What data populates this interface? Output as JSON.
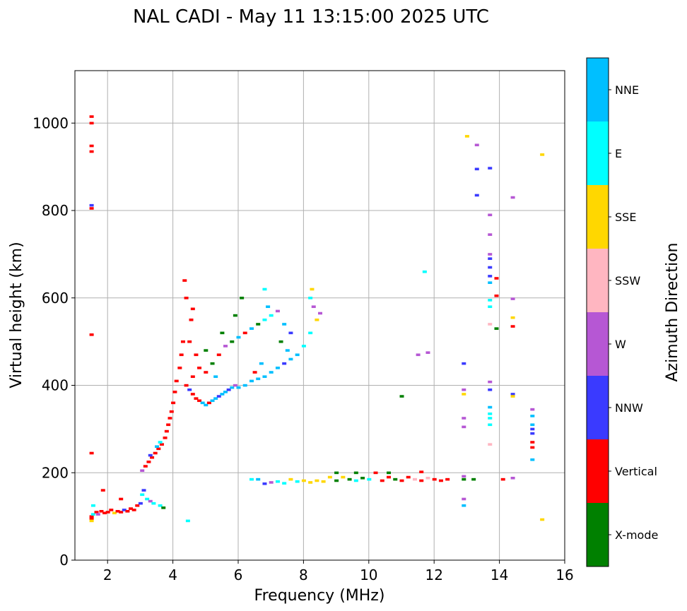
{
  "chart_data": {
    "type": "scatter",
    "subtype": "ionogram",
    "title": "NAL CADI - May 11 13:15:00 2025 UTC",
    "xlabel": "Frequency (MHz)",
    "ylabel": "Virtual height (km)",
    "xlim": [
      1,
      16
    ],
    "ylim": [
      0,
      1120
    ],
    "xticks": [
      2,
      4,
      6,
      8,
      10,
      12,
      14,
      16
    ],
    "yticks": [
      0,
      200,
      400,
      600,
      800,
      1000
    ],
    "grid": true,
    "colorbar": {
      "label": "Azimuth Direction",
      "categories": [
        {
          "name": "X-mode",
          "color": "#008000"
        },
        {
          "name": "Vertical",
          "color": "#ff0000"
        },
        {
          "name": "NNW",
          "color": "#3a3aff"
        },
        {
          "name": "W",
          "color": "#b657d4"
        },
        {
          "name": "SSW",
          "color": "#ffb6c1"
        },
        {
          "name": "SSE",
          "color": "#ffd700"
        },
        {
          "name": "E",
          "color": "#00ffff"
        },
        {
          "name": "NNE",
          "color": "#00bfff"
        }
      ]
    },
    "points": [
      {
        "x": 1.5,
        "y": 1015,
        "c": "Vertical"
      },
      {
        "x": 1.5,
        "y": 1000,
        "c": "Vertical"
      },
      {
        "x": 1.5,
        "y": 948,
        "c": "Vertical"
      },
      {
        "x": 1.5,
        "y": 935,
        "c": "Vertical"
      },
      {
        "x": 1.5,
        "y": 812,
        "c": "NNW"
      },
      {
        "x": 1.5,
        "y": 805,
        "c": "Vertical"
      },
      {
        "x": 1.5,
        "y": 516,
        "c": "Vertical"
      },
      {
        "x": 1.5,
        "y": 245,
        "c": "Vertical"
      },
      {
        "x": 1.5,
        "y": 100,
        "c": "Vertical"
      },
      {
        "x": 1.5,
        "y": 95,
        "c": "Vertical"
      },
      {
        "x": 1.55,
        "y": 105,
        "c": "E"
      },
      {
        "x": 1.55,
        "y": 125,
        "c": "E"
      },
      {
        "x": 1.5,
        "y": 90,
        "c": "SSE"
      },
      {
        "x": 1.65,
        "y": 110,
        "c": "Vertical"
      },
      {
        "x": 1.7,
        "y": 105,
        "c": "W"
      },
      {
        "x": 1.8,
        "y": 112,
        "c": "Vertical"
      },
      {
        "x": 1.9,
        "y": 108,
        "c": "Vertical"
      },
      {
        "x": 2.0,
        "y": 110,
        "c": "Vertical"
      },
      {
        "x": 2.1,
        "y": 115,
        "c": "Vertical"
      },
      {
        "x": 2.2,
        "y": 108,
        "c": "SSE"
      },
      {
        "x": 2.3,
        "y": 112,
        "c": "Vertical"
      },
      {
        "x": 2.4,
        "y": 110,
        "c": "Vertical"
      },
      {
        "x": 2.5,
        "y": 115,
        "c": "NNW"
      },
      {
        "x": 2.6,
        "y": 112,
        "c": "Vertical"
      },
      {
        "x": 2.7,
        "y": 118,
        "c": "Vertical"
      },
      {
        "x": 2.8,
        "y": 115,
        "c": "Vertical"
      },
      {
        "x": 2.9,
        "y": 125,
        "c": "Vertical"
      },
      {
        "x": 3.0,
        "y": 130,
        "c": "NNW"
      },
      {
        "x": 3.05,
        "y": 150,
        "c": "E"
      },
      {
        "x": 3.1,
        "y": 160,
        "c": "NNW"
      },
      {
        "x": 3.2,
        "y": 140,
        "c": "E"
      },
      {
        "x": 3.3,
        "y": 135,
        "c": "W"
      },
      {
        "x": 3.4,
        "y": 130,
        "c": "E"
      },
      {
        "x": 3.6,
        "y": 125,
        "c": "E"
      },
      {
        "x": 3.7,
        "y": 120,
        "c": "X-mode"
      },
      {
        "x": 1.85,
        "y": 160,
        "c": "Vertical"
      },
      {
        "x": 2.4,
        "y": 140,
        "c": "Vertical"
      },
      {
        "x": 4.45,
        "y": 90,
        "c": "E"
      },
      {
        "x": 3.05,
        "y": 205,
        "c": "W"
      },
      {
        "x": 3.15,
        "y": 215,
        "c": "Vertical"
      },
      {
        "x": 3.25,
        "y": 225,
        "c": "Vertical"
      },
      {
        "x": 3.35,
        "y": 235,
        "c": "Vertical"
      },
      {
        "x": 3.45,
        "y": 245,
        "c": "Vertical"
      },
      {
        "x": 3.55,
        "y": 255,
        "c": "Vertical"
      },
      {
        "x": 3.65,
        "y": 265,
        "c": "Vertical"
      },
      {
        "x": 3.75,
        "y": 280,
        "c": "Vertical"
      },
      {
        "x": 3.8,
        "y": 295,
        "c": "Vertical"
      },
      {
        "x": 3.85,
        "y": 310,
        "c": "Vertical"
      },
      {
        "x": 3.9,
        "y": 325,
        "c": "Vertical"
      },
      {
        "x": 3.95,
        "y": 340,
        "c": "Vertical"
      },
      {
        "x": 4.0,
        "y": 360,
        "c": "Vertical"
      },
      {
        "x": 4.05,
        "y": 385,
        "c": "Vertical"
      },
      {
        "x": 4.1,
        "y": 410,
        "c": "Vertical"
      },
      {
        "x": 4.2,
        "y": 440,
        "c": "Vertical"
      },
      {
        "x": 4.25,
        "y": 470,
        "c": "Vertical"
      },
      {
        "x": 4.3,
        "y": 500,
        "c": "Vertical"
      },
      {
        "x": 4.35,
        "y": 640,
        "c": "Vertical"
      },
      {
        "x": 4.4,
        "y": 600,
        "c": "Vertical"
      },
      {
        "x": 3.5,
        "y": 260,
        "c": "NNE"
      },
      {
        "x": 3.6,
        "y": 270,
        "c": "E"
      },
      {
        "x": 3.3,
        "y": 240,
        "c": "NNW"
      },
      {
        "x": 4.4,
        "y": 400,
        "c": "Vertical"
      },
      {
        "x": 4.5,
        "y": 390,
        "c": "NNW"
      },
      {
        "x": 4.6,
        "y": 380,
        "c": "Vertical"
      },
      {
        "x": 4.7,
        "y": 370,
        "c": "Vertical"
      },
      {
        "x": 4.8,
        "y": 365,
        "c": "Vertical"
      },
      {
        "x": 4.9,
        "y": 360,
        "c": "NNE"
      },
      {
        "x": 5.0,
        "y": 355,
        "c": "NNE"
      },
      {
        "x": 5.1,
        "y": 360,
        "c": "Vertical"
      },
      {
        "x": 5.2,
        "y": 365,
        "c": "NNE"
      },
      {
        "x": 5.3,
        "y": 370,
        "c": "NNE"
      },
      {
        "x": 5.4,
        "y": 375,
        "c": "NNW"
      },
      {
        "x": 5.5,
        "y": 380,
        "c": "NNE"
      },
      {
        "x": 5.6,
        "y": 385,
        "c": "NNE"
      },
      {
        "x": 5.7,
        "y": 390,
        "c": "NNW"
      },
      {
        "x": 5.8,
        "y": 395,
        "c": "NNE"
      },
      {
        "x": 5.9,
        "y": 400,
        "c": "W"
      },
      {
        "x": 6.0,
        "y": 395,
        "c": "NNE"
      },
      {
        "x": 6.2,
        "y": 400,
        "c": "NNE"
      },
      {
        "x": 6.4,
        "y": 410,
        "c": "NNE"
      },
      {
        "x": 6.6,
        "y": 415,
        "c": "NNE"
      },
      {
        "x": 6.8,
        "y": 420,
        "c": "NNE"
      },
      {
        "x": 7.0,
        "y": 430,
        "c": "NNE"
      },
      {
        "x": 7.2,
        "y": 440,
        "c": "NNE"
      },
      {
        "x": 7.4,
        "y": 450,
        "c": "NNW"
      },
      {
        "x": 7.6,
        "y": 460,
        "c": "NNE"
      },
      {
        "x": 7.8,
        "y": 470,
        "c": "NNE"
      },
      {
        "x": 8.0,
        "y": 490,
        "c": "E"
      },
      {
        "x": 8.2,
        "y": 520,
        "c": "E"
      },
      {
        "x": 8.4,
        "y": 550,
        "c": "SSE"
      },
      {
        "x": 8.5,
        "y": 565,
        "c": "W"
      },
      {
        "x": 8.2,
        "y": 600,
        "c": "E"
      },
      {
        "x": 8.25,
        "y": 620,
        "c": "SSE"
      },
      {
        "x": 4.6,
        "y": 420,
        "c": "Vertical"
      },
      {
        "x": 4.8,
        "y": 440,
        "c": "Vertical"
      },
      {
        "x": 5.0,
        "y": 430,
        "c": "Vertical"
      },
      {
        "x": 5.2,
        "y": 450,
        "c": "X-mode"
      },
      {
        "x": 5.4,
        "y": 470,
        "c": "Vertical"
      },
      {
        "x": 5.6,
        "y": 490,
        "c": "W"
      },
      {
        "x": 5.8,
        "y": 500,
        "c": "X-mode"
      },
      {
        "x": 6.0,
        "y": 510,
        "c": "NNE"
      },
      {
        "x": 6.2,
        "y": 520,
        "c": "Vertical"
      },
      {
        "x": 6.4,
        "y": 530,
        "c": "NNE"
      },
      {
        "x": 6.6,
        "y": 540,
        "c": "X-mode"
      },
      {
        "x": 6.8,
        "y": 550,
        "c": "E"
      },
      {
        "x": 7.0,
        "y": 560,
        "c": "E"
      },
      {
        "x": 7.2,
        "y": 570,
        "c": "W"
      },
      {
        "x": 7.4,
        "y": 540,
        "c": "NNE"
      },
      {
        "x": 7.6,
        "y": 520,
        "c": "NNW"
      },
      {
        "x": 5.0,
        "y": 480,
        "c": "X-mode"
      },
      {
        "x": 5.5,
        "y": 520,
        "c": "X-mode"
      },
      {
        "x": 5.9,
        "y": 560,
        "c": "X-mode"
      },
      {
        "x": 6.1,
        "y": 600,
        "c": "X-mode"
      },
      {
        "x": 4.5,
        "y": 500,
        "c": "Vertical"
      },
      {
        "x": 4.7,
        "y": 470,
        "c": "Vertical"
      },
      {
        "x": 4.6,
        "y": 575,
        "c": "Vertical"
      },
      {
        "x": 4.55,
        "y": 550,
        "c": "Vertical"
      },
      {
        "x": 6.8,
        "y": 620,
        "c": "E"
      },
      {
        "x": 6.9,
        "y": 580,
        "c": "NNE"
      },
      {
        "x": 7.3,
        "y": 500,
        "c": "X-mode"
      },
      {
        "x": 7.5,
        "y": 480,
        "c": "NNE"
      },
      {
        "x": 8.3,
        "y": 580,
        "c": "W"
      },
      {
        "x": 6.5,
        "y": 430,
        "c": "Vertical"
      },
      {
        "x": 6.7,
        "y": 450,
        "c": "NNE"
      },
      {
        "x": 5.3,
        "y": 420,
        "c": "NNE"
      },
      {
        "x": 6.6,
        "y": 185,
        "c": "NNE"
      },
      {
        "x": 6.8,
        "y": 175,
        "c": "NNW"
      },
      {
        "x": 7.0,
        "y": 178,
        "c": "W"
      },
      {
        "x": 7.2,
        "y": 180,
        "c": "E"
      },
      {
        "x": 7.4,
        "y": 176,
        "c": "E"
      },
      {
        "x": 7.6,
        "y": 185,
        "c": "SSE"
      },
      {
        "x": 7.8,
        "y": 180,
        "c": "E"
      },
      {
        "x": 8.0,
        "y": 182,
        "c": "SSE"
      },
      {
        "x": 8.2,
        "y": 178,
        "c": "SSE"
      },
      {
        "x": 8.4,
        "y": 182,
        "c": "SSE"
      },
      {
        "x": 8.6,
        "y": 180,
        "c": "SSE"
      },
      {
        "x": 8.8,
        "y": 190,
        "c": "SSE"
      },
      {
        "x": 9.0,
        "y": 182,
        "c": "X-mode"
      },
      {
        "x": 9.0,
        "y": 200,
        "c": "X-mode"
      },
      {
        "x": 9.2,
        "y": 190,
        "c": "SSE"
      },
      {
        "x": 9.4,
        "y": 185,
        "c": "X-mode"
      },
      {
        "x": 9.6,
        "y": 182,
        "c": "E"
      },
      {
        "x": 9.8,
        "y": 188,
        "c": "X-mode"
      },
      {
        "x": 10.0,
        "y": 185,
        "c": "E"
      },
      {
        "x": 10.2,
        "y": 200,
        "c": "Vertical"
      },
      {
        "x": 10.4,
        "y": 182,
        "c": "Vertical"
      },
      {
        "x": 10.6,
        "y": 190,
        "c": "Vertical"
      },
      {
        "x": 10.8,
        "y": 185,
        "c": "X-mode"
      },
      {
        "x": 11.0,
        "y": 182,
        "c": "Vertical"
      },
      {
        "x": 11.2,
        "y": 190,
        "c": "Vertical"
      },
      {
        "x": 11.4,
        "y": 185,
        "c": "SSW"
      },
      {
        "x": 11.6,
        "y": 182,
        "c": "Vertical"
      },
      {
        "x": 11.8,
        "y": 188,
        "c": "SSW"
      },
      {
        "x": 12.0,
        "y": 185,
        "c": "Vertical"
      },
      {
        "x": 12.2,
        "y": 182,
        "c": "Vertical"
      },
      {
        "x": 12.4,
        "y": 185,
        "c": "Vertical"
      },
      {
        "x": 6.4,
        "y": 185,
        "c": "E"
      },
      {
        "x": 9.6,
        "y": 200,
        "c": "X-mode"
      },
      {
        "x": 10.6,
        "y": 200,
        "c": "X-mode"
      },
      {
        "x": 11.6,
        "y": 202,
        "c": "Vertical"
      },
      {
        "x": 11.0,
        "y": 375,
        "c": "X-mode"
      },
      {
        "x": 11.5,
        "y": 470,
        "c": "W"
      },
      {
        "x": 11.8,
        "y": 475,
        "c": "W"
      },
      {
        "x": 11.7,
        "y": 660,
        "c": "E"
      },
      {
        "x": 13.0,
        "y": 970,
        "c": "SSE"
      },
      {
        "x": 13.3,
        "y": 950,
        "c": "W"
      },
      {
        "x": 13.3,
        "y": 895,
        "c": "NNW"
      },
      {
        "x": 13.3,
        "y": 835,
        "c": "NNW"
      },
      {
        "x": 13.7,
        "y": 897,
        "c": "NNW"
      },
      {
        "x": 14.4,
        "y": 830,
        "c": "W"
      },
      {
        "x": 13.7,
        "y": 790,
        "c": "W"
      },
      {
        "x": 13.7,
        "y": 745,
        "c": "W"
      },
      {
        "x": 13.7,
        "y": 700,
        "c": "W"
      },
      {
        "x": 13.7,
        "y": 690,
        "c": "NNW"
      },
      {
        "x": 13.7,
        "y": 670,
        "c": "NNW"
      },
      {
        "x": 13.7,
        "y": 650,
        "c": "NNW"
      },
      {
        "x": 13.7,
        "y": 635,
        "c": "NNE"
      },
      {
        "x": 13.7,
        "y": 595,
        "c": "E"
      },
      {
        "x": 13.7,
        "y": 580,
        "c": "E"
      },
      {
        "x": 13.7,
        "y": 540,
        "c": "SSW"
      },
      {
        "x": 13.9,
        "y": 645,
        "c": "Vertical"
      },
      {
        "x": 13.9,
        "y": 605,
        "c": "Vertical"
      },
      {
        "x": 13.9,
        "y": 530,
        "c": "X-mode"
      },
      {
        "x": 14.4,
        "y": 598,
        "c": "W"
      },
      {
        "x": 14.4,
        "y": 555,
        "c": "SSE"
      },
      {
        "x": 14.4,
        "y": 535,
        "c": "Vertical"
      },
      {
        "x": 12.9,
        "y": 450,
        "c": "NNW"
      },
      {
        "x": 12.9,
        "y": 390,
        "c": "W"
      },
      {
        "x": 12.9,
        "y": 380,
        "c": "SSE"
      },
      {
        "x": 12.9,
        "y": 325,
        "c": "W"
      },
      {
        "x": 12.9,
        "y": 305,
        "c": "W"
      },
      {
        "x": 12.9,
        "y": 192,
        "c": "W"
      },
      {
        "x": 12.9,
        "y": 185,
        "c": "X-mode"
      },
      {
        "x": 12.9,
        "y": 140,
        "c": "W"
      },
      {
        "x": 12.9,
        "y": 125,
        "c": "NNE"
      },
      {
        "x": 13.2,
        "y": 185,
        "c": "X-mode"
      },
      {
        "x": 13.7,
        "y": 408,
        "c": "W"
      },
      {
        "x": 13.7,
        "y": 390,
        "c": "NNW"
      },
      {
        "x": 13.7,
        "y": 350,
        "c": "NNE"
      },
      {
        "x": 13.7,
        "y": 335,
        "c": "E"
      },
      {
        "x": 13.7,
        "y": 325,
        "c": "E"
      },
      {
        "x": 13.7,
        "y": 310,
        "c": "E"
      },
      {
        "x": 13.7,
        "y": 265,
        "c": "SSW"
      },
      {
        "x": 14.4,
        "y": 380,
        "c": "NNW"
      },
      {
        "x": 14.4,
        "y": 375,
        "c": "SSE"
      },
      {
        "x": 14.1,
        "y": 185,
        "c": "Vertical"
      },
      {
        "x": 14.4,
        "y": 188,
        "c": "W"
      },
      {
        "x": 15.0,
        "y": 345,
        "c": "W"
      },
      {
        "x": 15.0,
        "y": 330,
        "c": "NNE"
      },
      {
        "x": 15.0,
        "y": 310,
        "c": "NNE"
      },
      {
        "x": 15.0,
        "y": 300,
        "c": "NNW"
      },
      {
        "x": 15.0,
        "y": 290,
        "c": "NNW"
      },
      {
        "x": 15.0,
        "y": 270,
        "c": "Vertical"
      },
      {
        "x": 15.0,
        "y": 258,
        "c": "Vertical"
      },
      {
        "x": 15.0,
        "y": 230,
        "c": "NNE"
      },
      {
        "x": 15.3,
        "y": 928,
        "c": "SSE"
      },
      {
        "x": 15.3,
        "y": 93,
        "c": "SSE"
      }
    ]
  }
}
